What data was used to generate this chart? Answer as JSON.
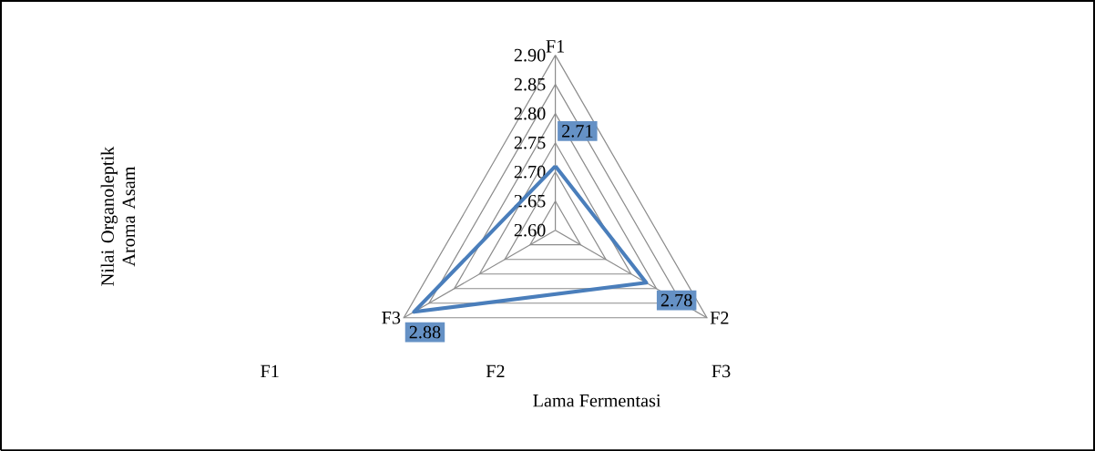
{
  "chart_data": {
    "type": "radar",
    "xlabel": "Lama Fermentasi",
    "ylabel": "Nilai Organoleptik Aroma Asam",
    "categories": [
      "F1",
      "F2",
      "F3"
    ],
    "series": [
      {
        "color": "#4a7ebb",
        "values": [
          2.71,
          2.78,
          2.88
        ]
      }
    ],
    "ylim": [
      2.6,
      2.9
    ],
    "yticks": [
      {
        "value": 2.6,
        "label": "2.60"
      },
      {
        "value": 2.65,
        "label": "2.65"
      },
      {
        "value": 2.7,
        "label": "2.70"
      },
      {
        "value": 2.75,
        "label": "2.75"
      },
      {
        "value": 2.8,
        "label": "2.80"
      },
      {
        "value": 2.85,
        "label": "2.85"
      },
      {
        "value": 2.9,
        "label": "2.90"
      }
    ],
    "grid": true,
    "data_labels": true,
    "annotations": [
      "F1",
      "F2",
      "F3"
    ]
  }
}
